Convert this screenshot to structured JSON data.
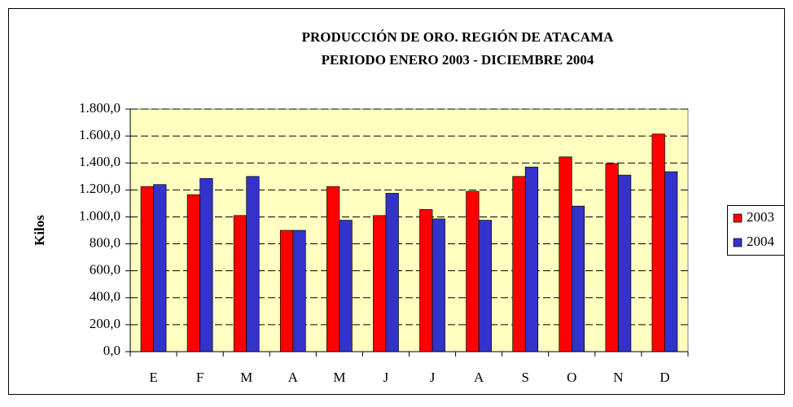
{
  "chart_data": {
    "type": "bar",
    "title": "PRODUCCIÓN DE ORO.  REGIÓN DE ATACAMA",
    "subtitle": "PERIODO ENERO 2003 - DICIEMBRE 2004",
    "y_label": "Kilos",
    "categories": [
      "E",
      "F",
      "M",
      "A",
      "M",
      "J",
      "J",
      "A",
      "S",
      "O",
      "N",
      "D"
    ],
    "series": [
      {
        "name": "2003",
        "color": "#ff0000",
        "values": [
          1225,
          1165,
          1010,
          900,
          1225,
          1010,
          1055,
          1190,
          1300,
          1445,
          1395,
          1615
        ]
      },
      {
        "name": "2004",
        "color": "#3333cc",
        "values": [
          1240,
          1285,
          1300,
          900,
          975,
          1175,
          985,
          975,
          1370,
          1080,
          1310,
          1335
        ]
      }
    ],
    "ylim": [
      0,
      1800
    ],
    "yticks": [
      {
        "value": 0,
        "label": "0,0"
      },
      {
        "value": 200,
        "label": "200,0"
      },
      {
        "value": 400,
        "label": "400,0"
      },
      {
        "value": 600,
        "label": "600,0"
      },
      {
        "value": 800,
        "label": "800,0"
      },
      {
        "value": 1000,
        "label": "1.000,0"
      },
      {
        "value": 1200,
        "label": "1.200,0"
      },
      {
        "value": 1400,
        "label": "1.400,0"
      },
      {
        "value": 1600,
        "label": "1.600,0"
      },
      {
        "value": 1800,
        "label": "1.800,0"
      }
    ],
    "grid": true,
    "legend": "right",
    "plot_background": "#ffffc0"
  }
}
